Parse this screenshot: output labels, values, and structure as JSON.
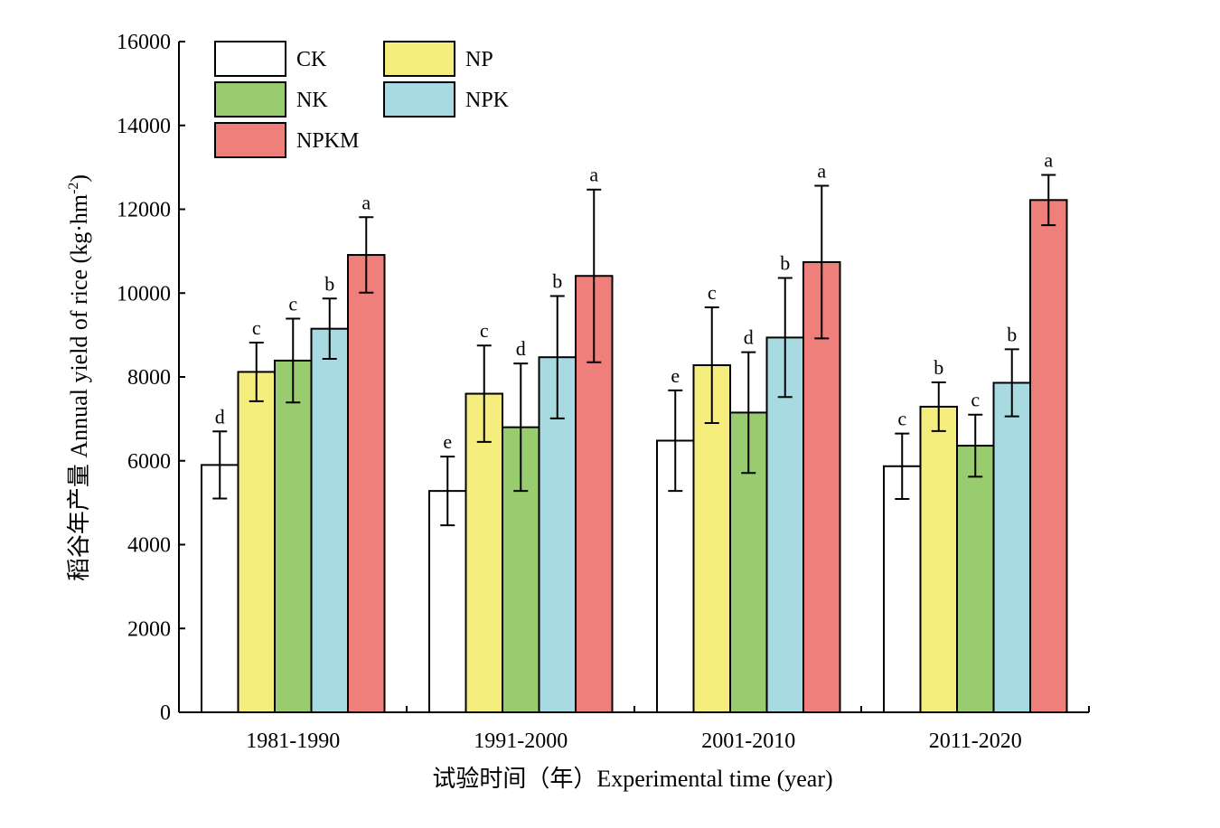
{
  "chart_data": {
    "type": "bar",
    "xlabel": "试验时间（年）Experimental time (year)",
    "ylabel_main": "稻谷年产量 Annual yield of rice (kg·hm",
    "ylabel_sup": "-2",
    "ylabel_close": ")",
    "ylim": [
      0,
      16000
    ],
    "yticks": [
      0,
      2000,
      4000,
      6000,
      8000,
      10000,
      12000,
      14000,
      16000
    ],
    "ytick_labels": [
      "0",
      "2000",
      "4000",
      "6000",
      "8000",
      "10000",
      "12000",
      "14000",
      "16000"
    ],
    "categories": [
      "1981-1990",
      "1991-2000",
      "2001-2010",
      "2011-2020"
    ],
    "legend_position": "top-left",
    "grid": false,
    "series": [
      {
        "name": "CK",
        "color": "#ffffff",
        "values": [
          5900,
          5280,
          6480,
          5870
        ],
        "errors": [
          800,
          820,
          1200,
          780
        ],
        "letters": [
          "d",
          "e",
          "e",
          "c"
        ]
      },
      {
        "name": "NP",
        "color": "#f5ee7f",
        "values": [
          8120,
          7600,
          8280,
          7290
        ],
        "errors": [
          700,
          1150,
          1380,
          580
        ],
        "letters": [
          "c",
          "c",
          "c",
          "b"
        ]
      },
      {
        "name": "NK",
        "color": "#99cc6e",
        "values": [
          8390,
          6800,
          7150,
          6360
        ],
        "errors": [
          1000,
          1520,
          1440,
          740
        ],
        "letters": [
          "c",
          "d",
          "d",
          "c"
        ]
      },
      {
        "name": "NPK",
        "color": "#a8dae2",
        "values": [
          9150,
          8470,
          8940,
          7860
        ],
        "errors": [
          720,
          1460,
          1420,
          800
        ],
        "letters": [
          "b",
          "b",
          "b",
          "b"
        ]
      },
      {
        "name": "NPKM",
        "color": "#ee7f7b",
        "values": [
          10910,
          10410,
          10740,
          12220
        ],
        "errors": [
          900,
          2060,
          1820,
          600
        ],
        "letters": [
          "a",
          "a",
          "a",
          "a"
        ]
      }
    ]
  }
}
